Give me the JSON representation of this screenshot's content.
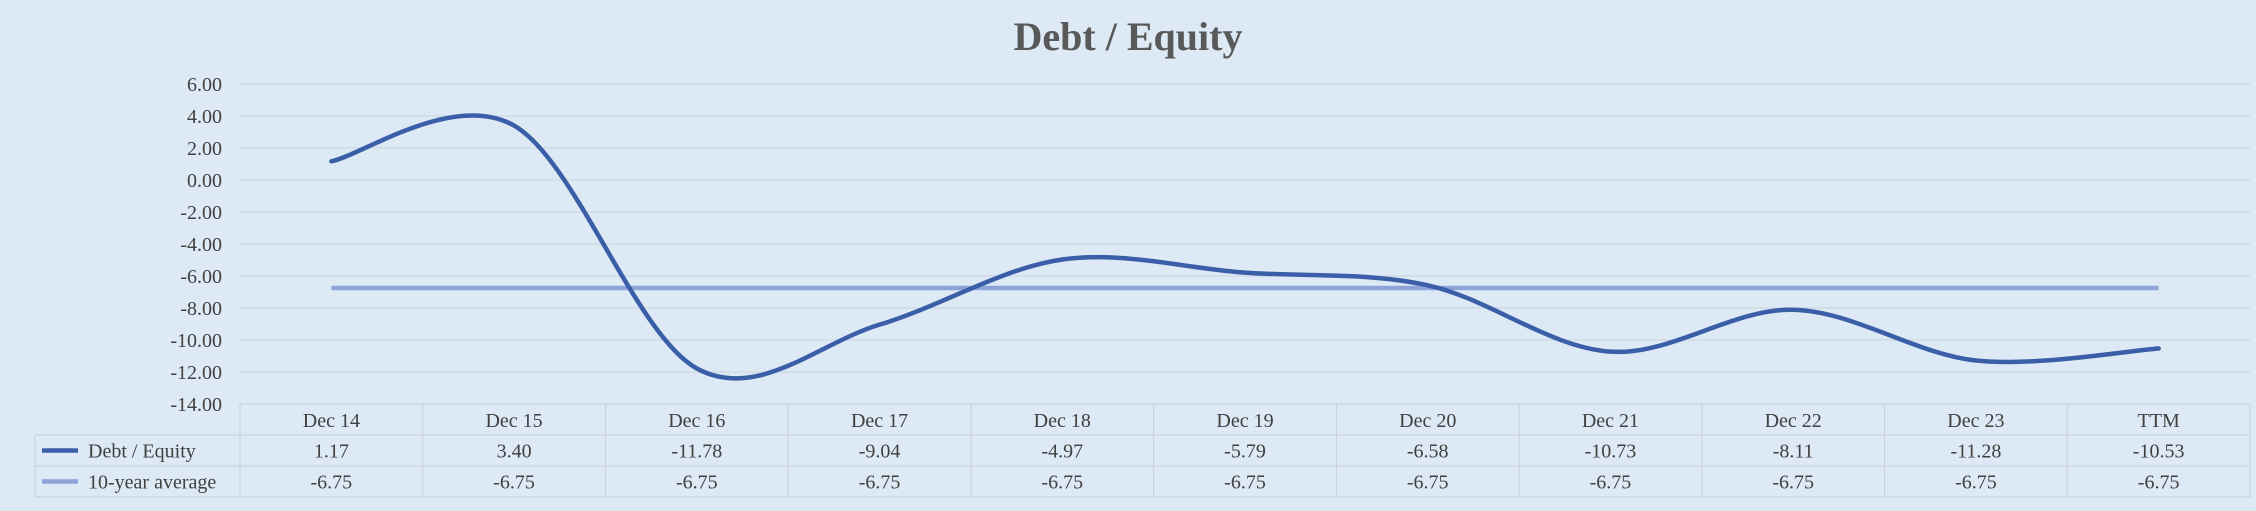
{
  "chart_data": {
    "type": "line",
    "title": "Debt / Equity",
    "categories": [
      "Dec 14",
      "Dec 15",
      "Dec 16",
      "Dec 17",
      "Dec 18",
      "Dec 19",
      "Dec 20",
      "Dec 21",
      "Dec 22",
      "Dec 23",
      "TTM"
    ],
    "series": [
      {
        "name": "Debt / Equity",
        "color": "#3a5fa8",
        "values": [
          1.17,
          3.4,
          -11.78,
          -9.04,
          -4.97,
          -5.79,
          -6.58,
          -10.73,
          -8.11,
          -11.28,
          -10.53
        ],
        "labels": [
          "1.17",
          "3.40",
          "-11.78",
          "-9.04",
          "-4.97",
          "-5.79",
          "-6.58",
          "-10.73",
          "-8.11",
          "-11.28",
          "-10.53"
        ]
      },
      {
        "name": "10-year average",
        "color": "#8ea3d8",
        "values": [
          -6.75,
          -6.75,
          -6.75,
          -6.75,
          -6.75,
          -6.75,
          -6.75,
          -6.75,
          -6.75,
          -6.75,
          -6.75
        ],
        "labels": [
          "-6.75",
          "-6.75",
          "-6.75",
          "-6.75",
          "-6.75",
          "-6.75",
          "-6.75",
          "-6.75",
          "-6.75",
          "-6.75",
          "-6.75"
        ]
      }
    ],
    "y_ticks": [
      "6.00",
      "4.00",
      "2.00",
      "0.00",
      "-2.00",
      "-4.00",
      "-6.00",
      "-8.00",
      "-10.00",
      "-12.00",
      "-14.00"
    ],
    "ylim": [
      -14,
      6
    ],
    "grid": true,
    "legend": "data-table"
  }
}
